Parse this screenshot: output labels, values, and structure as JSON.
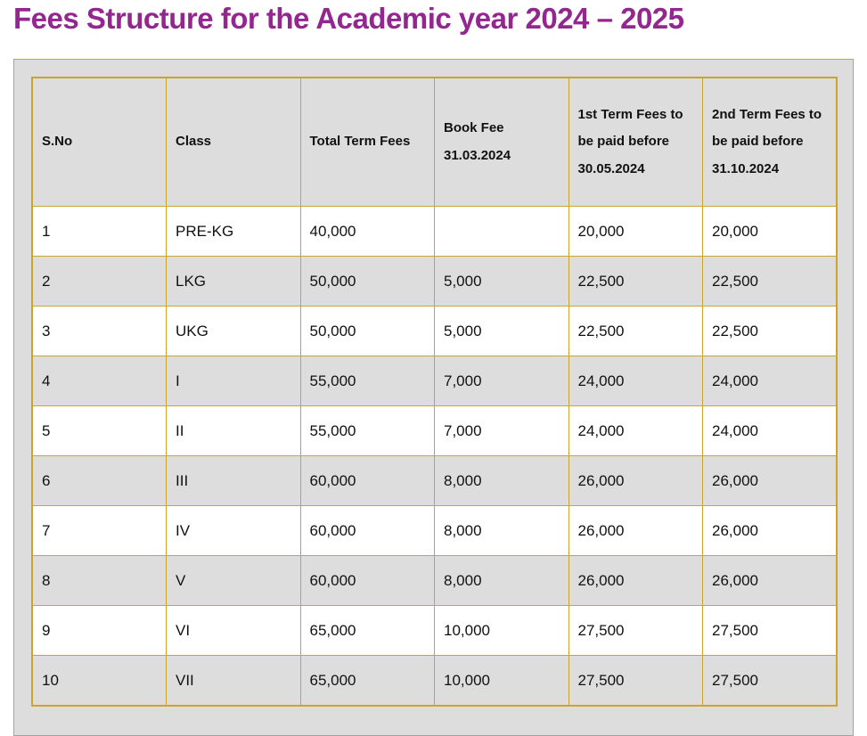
{
  "title": "Fees Structure for the Academic year 2024 – 2025",
  "colors": {
    "title": "#93278f",
    "border": "#c9a52a",
    "stripe": "#dddddd"
  },
  "table": {
    "headers": [
      "S.No",
      "Class",
      "Total Term Fees",
      "Book Fee 31.03.2024",
      "1st Term Fees to be paid before 30.05.2024",
      "2nd Term Fees to be paid before 31.10.2024"
    ],
    "rows": [
      [
        "1",
        "PRE-KG",
        "40,000",
        "",
        "20,000",
        "20,000"
      ],
      [
        "2",
        "LKG",
        "50,000",
        "5,000",
        "22,500",
        "22,500"
      ],
      [
        "3",
        "UKG",
        "50,000",
        "5,000",
        "22,500",
        "22,500"
      ],
      [
        "4",
        "I",
        "55,000",
        "7,000",
        "24,000",
        "24,000"
      ],
      [
        "5",
        "II",
        "55,000",
        "7,000",
        "24,000",
        "24,000"
      ],
      [
        "6",
        "III",
        "60,000",
        "8,000",
        "26,000",
        "26,000"
      ],
      [
        "7",
        "IV",
        "60,000",
        "8,000",
        "26,000",
        "26,000"
      ],
      [
        "8",
        "V",
        "60,000",
        "8,000",
        "26,000",
        "26,000"
      ],
      [
        "9",
        "VI",
        "65,000",
        "10,000",
        "27,500",
        "27,500"
      ],
      [
        "10",
        "VII",
        "65,000",
        "10,000",
        "27,500",
        "27,500"
      ]
    ]
  }
}
